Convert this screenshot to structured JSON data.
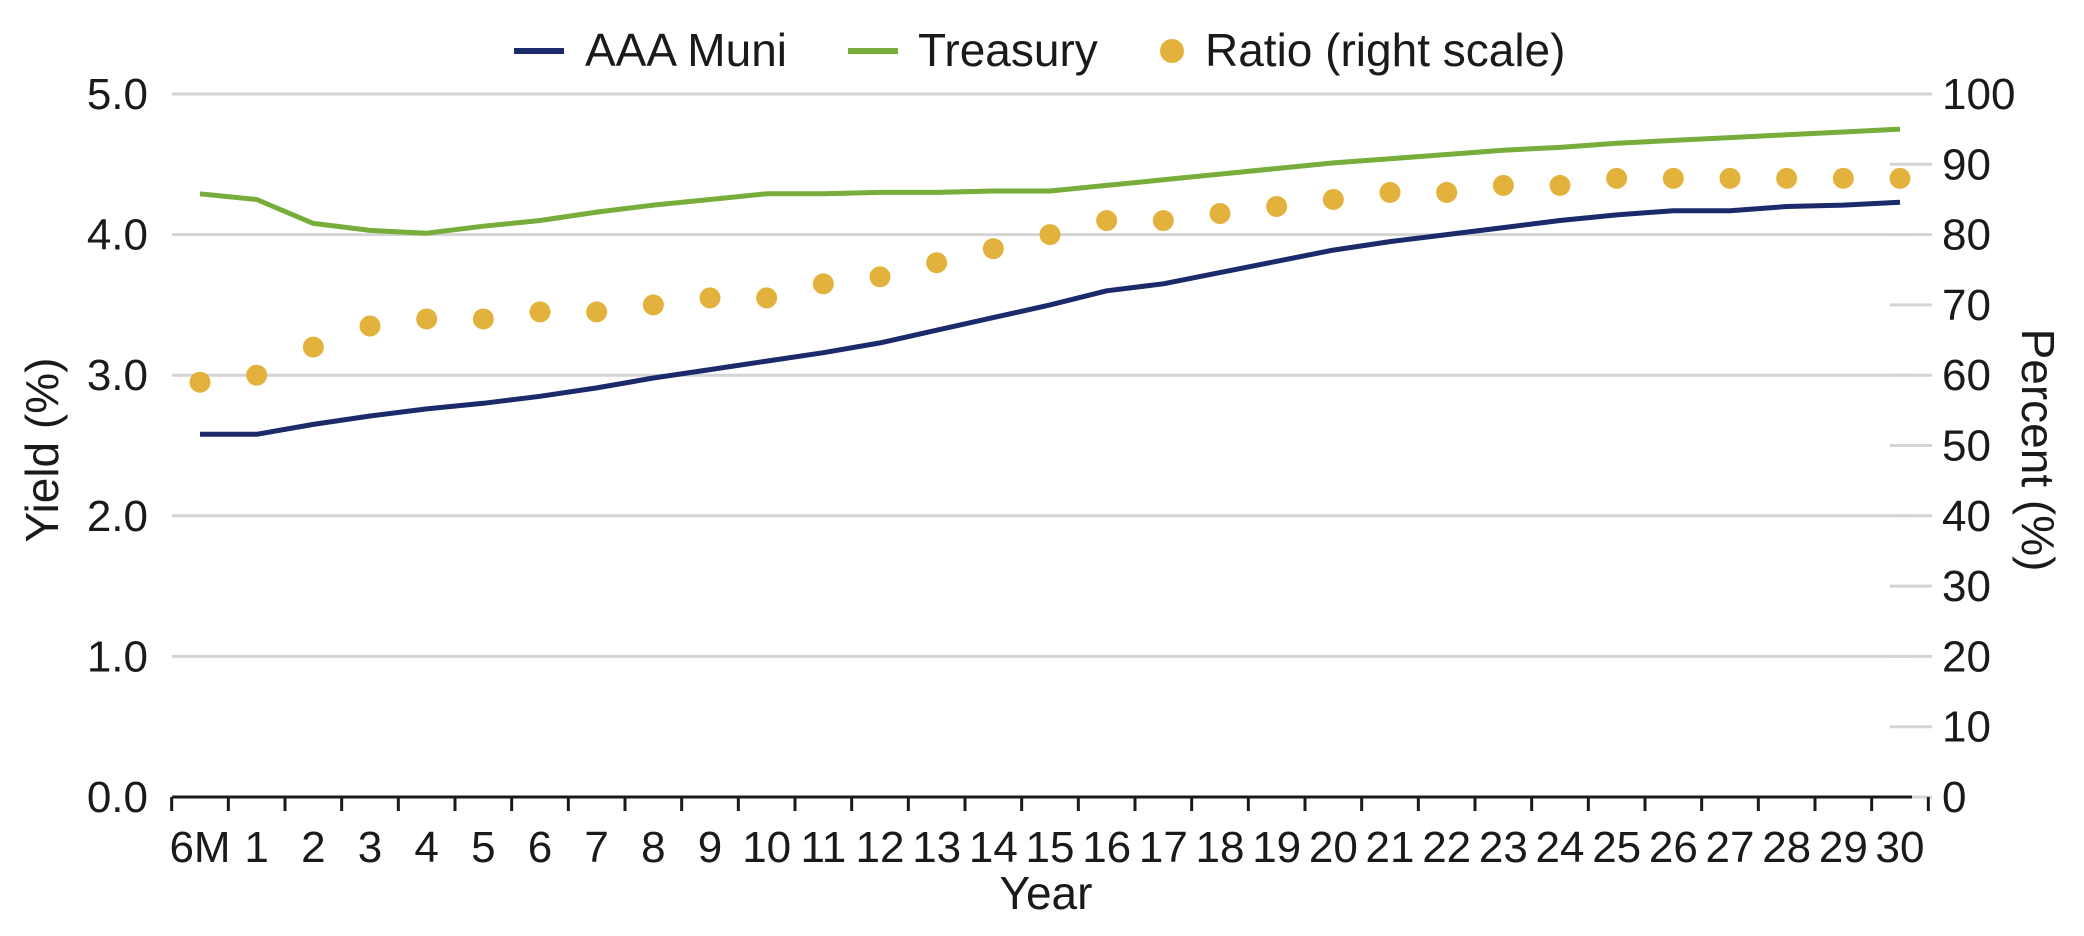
{
  "chart_data": {
    "type": "line",
    "xlabel": "Year",
    "ylabel_left": "Yield (%)",
    "ylabel_right": "Percent (%)",
    "categories": [
      "6M",
      "1",
      "2",
      "3",
      "4",
      "5",
      "6",
      "7",
      "8",
      "9",
      "10",
      "11",
      "12",
      "13",
      "14",
      "15",
      "16",
      "17",
      "18",
      "19",
      "20",
      "21",
      "22",
      "23",
      "24",
      "25",
      "26",
      "27",
      "28",
      "29",
      "30"
    ],
    "y_left": {
      "min": 0,
      "max": 5,
      "ticks": [
        "0.0",
        "1.0",
        "2.0",
        "3.0",
        "4.0",
        "5.0"
      ]
    },
    "y_right": {
      "min": 0,
      "max": 100,
      "ticks": [
        "0",
        "10",
        "20",
        "30",
        "40",
        "50",
        "60",
        "70",
        "80",
        "90",
        "100"
      ]
    },
    "grid": true,
    "legend_position": "top",
    "series": [
      {
        "name": "AAA Muni",
        "kind": "line",
        "axis": "left",
        "color": "#1b2a6b",
        "values": [
          2.58,
          2.58,
          2.65,
          2.71,
          2.76,
          2.8,
          2.85,
          2.91,
          2.98,
          3.04,
          3.1,
          3.16,
          3.23,
          3.32,
          3.41,
          3.5,
          3.6,
          3.65,
          3.73,
          3.81,
          3.89,
          3.95,
          4.0,
          4.05,
          4.1,
          4.14,
          4.17,
          4.17,
          4.2,
          4.21,
          4.23
        ]
      },
      {
        "name": "Treasury",
        "kind": "line",
        "axis": "left",
        "color": "#76ad3b",
        "values": [
          4.29,
          4.25,
          4.08,
          4.03,
          4.01,
          4.06,
          4.1,
          4.16,
          4.21,
          4.25,
          4.29,
          4.29,
          4.3,
          4.3,
          4.31,
          4.31,
          4.35,
          4.39,
          4.43,
          4.47,
          4.51,
          4.54,
          4.57,
          4.6,
          4.62,
          4.65,
          4.67,
          4.69,
          4.71,
          4.73,
          4.75
        ]
      },
      {
        "name": "Ratio (right scale)",
        "kind": "scatter",
        "axis": "right",
        "color": "#e3b23c",
        "values": [
          59,
          60,
          64,
          67,
          68,
          68,
          69,
          69,
          70,
          71,
          71,
          73,
          74,
          76,
          78,
          80,
          82,
          82,
          83,
          84,
          85,
          86,
          86,
          87,
          87,
          88,
          88,
          88,
          88,
          88,
          88
        ]
      }
    ]
  }
}
